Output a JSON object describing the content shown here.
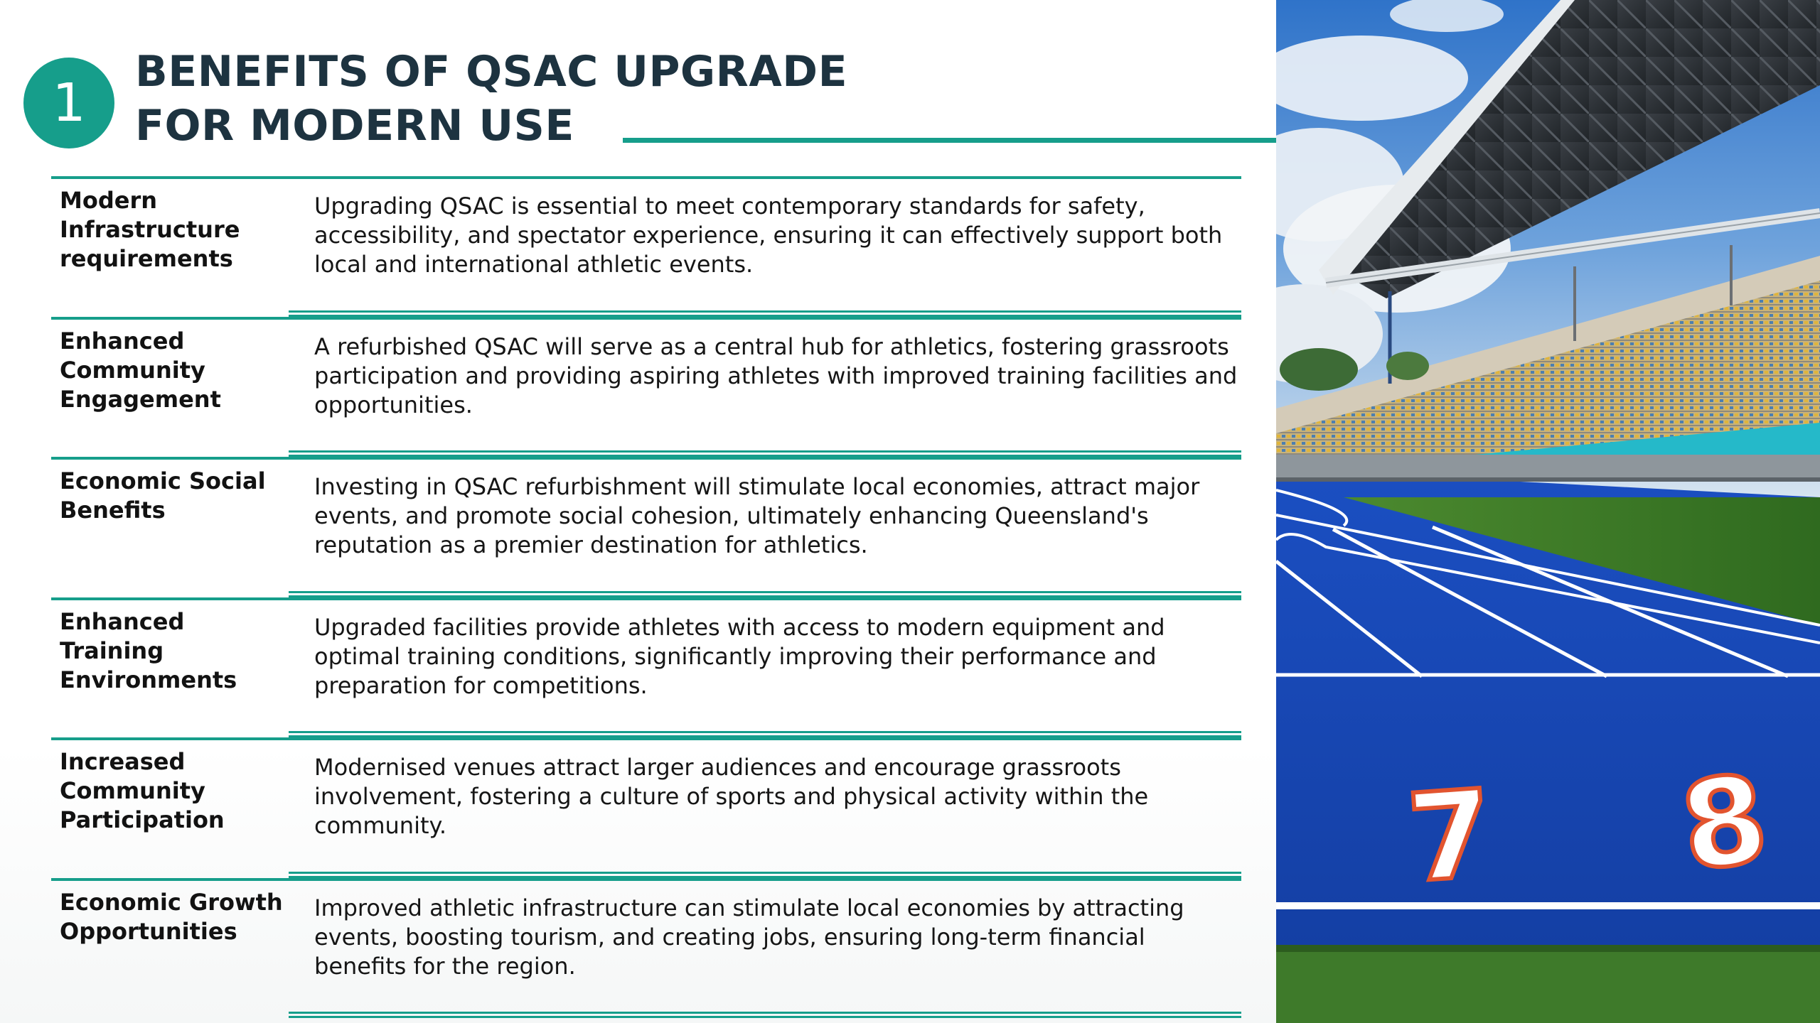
{
  "header": {
    "badge_number": "1",
    "title_line1": "BENEFITS OF QSAC UPGRADE",
    "title_line2": "FOR MODERN USE",
    "accent_color": "#169e8b",
    "title_color": "#1d3340"
  },
  "rows": [
    {
      "label": "Modern Infrastructure requirements",
      "description": "Upgrading QSAC is essential to meet contemporary standards for safety, accessibility, and spectator experience, ensuring it can effectively support both local and international athletic events."
    },
    {
      "label": "Enhanced Community Engagement",
      "description": "A refurbished QSAC will serve as a central hub for athletics, fostering grassroots participation and providing aspiring athletes with improved training facilities and opportunities."
    },
    {
      "label": "Economic Social Benefits",
      "description": "Investing in QSAC refurbishment will stimulate local economies, attract major events, and promote social cohesion, ultimately enhancing Queensland's reputation as a premier destination for athletics."
    },
    {
      "label": "Enhanced Training Environments",
      "description": "Upgraded facilities provide athletes with access to modern equipment and optimal training conditions, significantly improving their performance and preparation for competitions."
    },
    {
      "label": "Increased Community Participation",
      "description": "Modernised venues attract larger audiences and encourage grassroots involvement, fostering a culture of sports and physical activity within the community."
    },
    {
      "label": "Economic Growth Opportunities",
      "description": "Improved athletic infrastructure can stimulate local economies by attracting events, boosting tourism, and creating jobs, ensuring long-term financial benefits for the region."
    }
  ],
  "photo": {
    "lane_numbers": [
      "7",
      "8"
    ]
  }
}
